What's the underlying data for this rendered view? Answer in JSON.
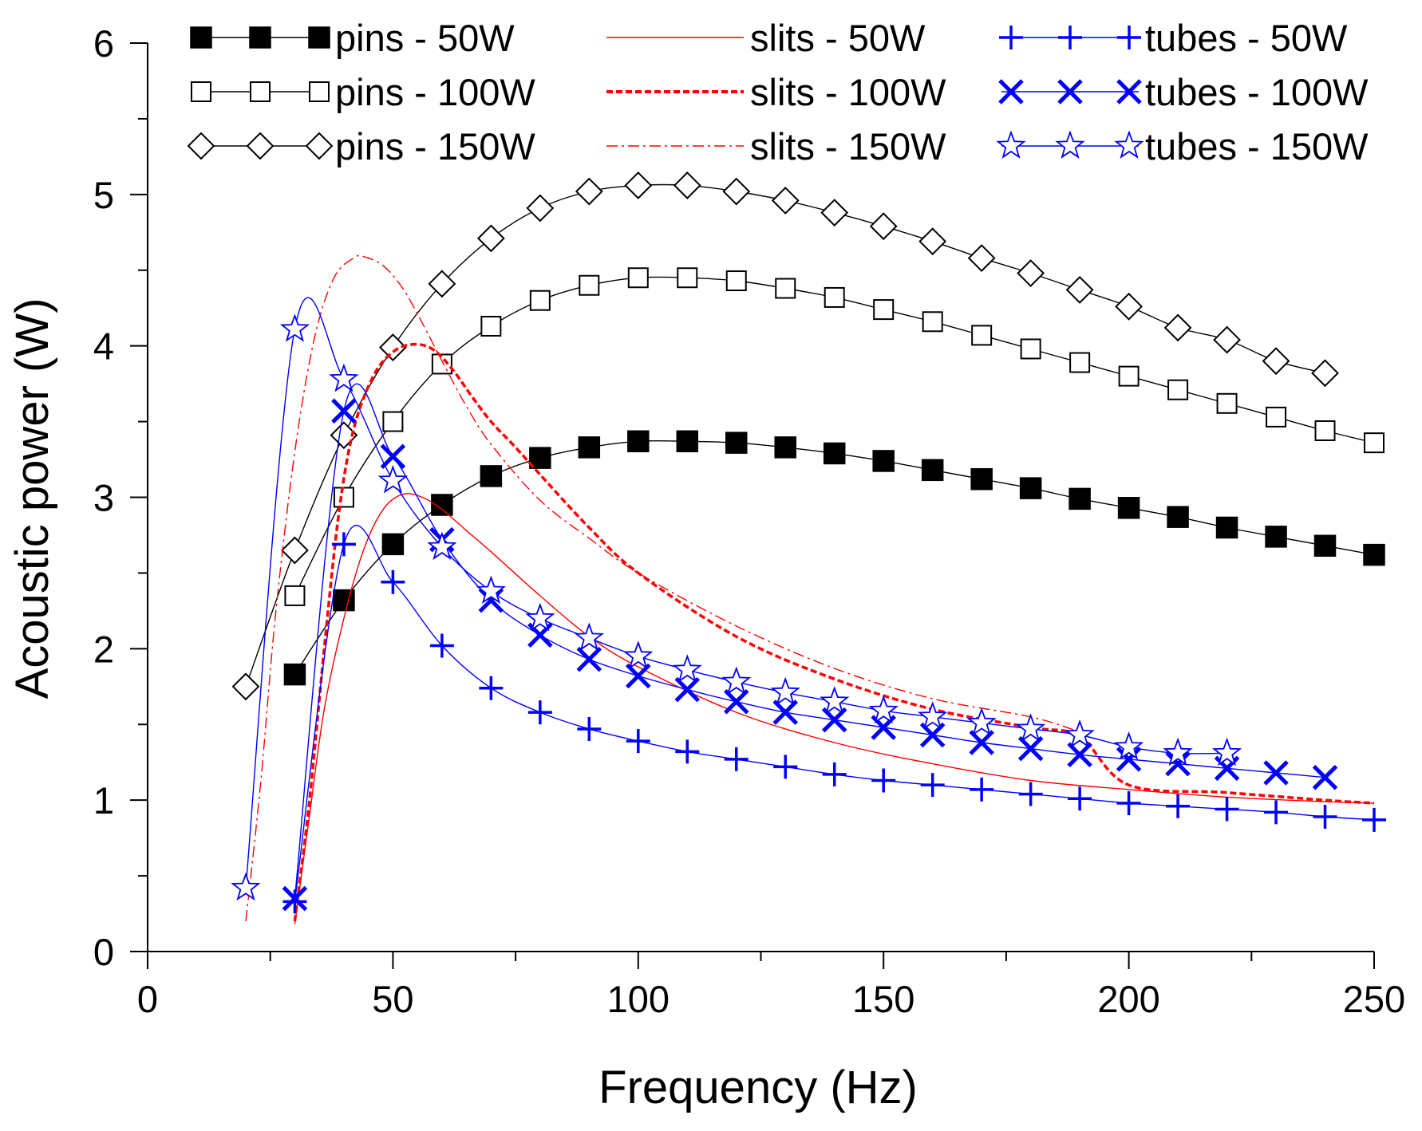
{
  "chart_data": {
    "type": "line",
    "title": "",
    "xlabel": "Frequency (Hz)",
    "ylabel": "Acoustic power (W)",
    "xlim": [
      0,
      250
    ],
    "ylim": [
      0,
      6
    ],
    "x_ticks": [
      0,
      50,
      100,
      150,
      200,
      250
    ],
    "y_ticks": [
      0,
      1,
      2,
      3,
      4,
      5,
      6
    ],
    "legend_position": "top",
    "colors": {
      "black": "#000000",
      "red": "#ff0000",
      "blue": "#0000ff"
    },
    "series": [
      {
        "name": "pins - 50W",
        "color": "#000000",
        "line": "solid",
        "marker": "square-filled",
        "x": [
          30,
          40,
          50,
          60,
          70,
          80,
          90,
          100,
          110,
          120,
          130,
          140,
          150,
          160,
          170,
          180,
          190,
          200,
          210,
          220,
          230,
          240,
          250
        ],
        "y": [
          1.83,
          2.32,
          2.69,
          2.95,
          3.14,
          3.26,
          3.33,
          3.37,
          3.37,
          3.36,
          3.33,
          3.29,
          3.24,
          3.18,
          3.12,
          3.06,
          2.99,
          2.93,
          2.87,
          2.8,
          2.74,
          2.68,
          2.62
        ]
      },
      {
        "name": "pins - 100W",
        "color": "#000000",
        "line": "solid",
        "marker": "square-open",
        "x": [
          30,
          40,
          50,
          60,
          70,
          80,
          90,
          100,
          110,
          120,
          130,
          140,
          150,
          160,
          170,
          180,
          190,
          200,
          210,
          220,
          230,
          240,
          250
        ],
        "y": [
          2.35,
          3.0,
          3.5,
          3.88,
          4.13,
          4.3,
          4.4,
          4.45,
          4.45,
          4.43,
          4.38,
          4.32,
          4.24,
          4.16,
          4.07,
          3.98,
          3.89,
          3.8,
          3.71,
          3.62,
          3.53,
          3.44,
          3.36
        ]
      },
      {
        "name": "pins - 150W",
        "color": "#000000",
        "line": "solid",
        "marker": "diamond-open",
        "x": [
          20,
          30,
          40,
          50,
          60,
          70,
          80,
          90,
          100,
          110,
          120,
          130,
          140,
          150,
          160,
          170,
          180,
          190,
          200,
          210,
          220,
          230,
          240
        ],
        "y": [
          1.75,
          2.65,
          3.41,
          3.99,
          4.41,
          4.71,
          4.91,
          5.02,
          5.06,
          5.06,
          5.02,
          4.96,
          4.88,
          4.79,
          4.69,
          4.58,
          4.48,
          4.37,
          4.26,
          4.12,
          4.04,
          3.9,
          3.82
        ]
      },
      {
        "name": "slits - 50W",
        "color": "#ff0000",
        "line": "solid",
        "marker": "none",
        "x": [
          30,
          33,
          36,
          40,
          44,
          48,
          52,
          56,
          60,
          65,
          70,
          80,
          90,
          100,
          120,
          140,
          160,
          180,
          200,
          220,
          240,
          250
        ],
        "y": [
          0.18,
          0.9,
          1.6,
          2.2,
          2.65,
          2.92,
          3.02,
          3.0,
          2.92,
          2.78,
          2.64,
          2.35,
          2.08,
          1.88,
          1.58,
          1.38,
          1.24,
          1.13,
          1.07,
          1.02,
          0.99,
          0.98
        ]
      },
      {
        "name": "slits - 100W",
        "color": "#ff0000",
        "line": "dashed",
        "marker": "none",
        "x": [
          30,
          33,
          36,
          39,
          42,
          46,
          50,
          54,
          58,
          62,
          66,
          70,
          75,
          80,
          90,
          100,
          120,
          140,
          160,
          180,
          190,
          200,
          220,
          240,
          250
        ],
        "y": [
          0.2,
          1.0,
          2.0,
          2.9,
          3.45,
          3.8,
          3.96,
          4.01,
          3.98,
          3.85,
          3.67,
          3.5,
          3.33,
          3.15,
          2.8,
          2.5,
          2.08,
          1.8,
          1.6,
          1.48,
          1.42,
          1.1,
          1.05,
          1.0,
          0.98
        ]
      },
      {
        "name": "slits - 150W",
        "color": "#ff0000",
        "line": "dashdot",
        "marker": "none",
        "x": [
          20,
          23,
          26,
          30,
          34,
          38,
          42,
          44,
          48,
          52,
          56,
          60,
          65,
          70,
          80,
          90,
          100,
          120,
          140,
          160,
          180,
          190
        ],
        "y": [
          0.2,
          1.1,
          2.2,
          3.3,
          4.05,
          4.45,
          4.58,
          4.59,
          4.53,
          4.38,
          4.15,
          3.9,
          3.6,
          3.35,
          2.98,
          2.73,
          2.5,
          2.15,
          1.87,
          1.67,
          1.55,
          1.45
        ]
      },
      {
        "name": "tubes - 50W",
        "color": "#0000ff",
        "line": "solid",
        "marker": "plus",
        "x": [
          30,
          40,
          50,
          60,
          70,
          80,
          90,
          100,
          110,
          120,
          130,
          140,
          150,
          160,
          170,
          180,
          190,
          200,
          210,
          220,
          230,
          240,
          250
        ],
        "y": [
          0.33,
          2.69,
          2.44,
          2.02,
          1.74,
          1.58,
          1.47,
          1.39,
          1.32,
          1.27,
          1.22,
          1.17,
          1.13,
          1.1,
          1.07,
          1.04,
          1.01,
          0.98,
          0.96,
          0.94,
          0.92,
          0.89,
          0.87
        ]
      },
      {
        "name": "tubes - 100W",
        "color": "#0000ff",
        "line": "solid",
        "marker": "x",
        "x": [
          30,
          40,
          50,
          60,
          70,
          80,
          90,
          100,
          110,
          120,
          130,
          140,
          150,
          160,
          170,
          180,
          190,
          200,
          210,
          220,
          230,
          240
        ],
        "y": [
          0.35,
          3.57,
          3.27,
          2.72,
          2.32,
          2.09,
          1.93,
          1.82,
          1.73,
          1.65,
          1.58,
          1.53,
          1.48,
          1.43,
          1.38,
          1.34,
          1.3,
          1.27,
          1.24,
          1.21,
          1.18,
          1.15
        ]
      },
      {
        "name": "tubes - 150W",
        "color": "#0000ff",
        "line": "solid",
        "marker": "star-open",
        "x": [
          20,
          30,
          40,
          50,
          60,
          70,
          80,
          90,
          100,
          110,
          120,
          130,
          140,
          150,
          160,
          170,
          180,
          190,
          200,
          210,
          220
        ],
        "y": [
          0.42,
          4.11,
          3.78,
          3.11,
          2.67,
          2.38,
          2.2,
          2.07,
          1.95,
          1.86,
          1.78,
          1.71,
          1.65,
          1.59,
          1.55,
          1.51,
          1.47,
          1.43,
          1.35,
          1.31,
          1.31
        ]
      }
    ]
  }
}
